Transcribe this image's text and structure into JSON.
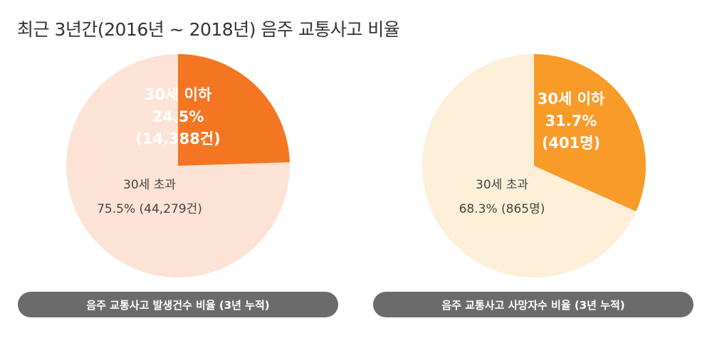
{
  "title": "최근 3년간(2016년 ~ 2018년) 음주 교통사고 비율",
  "chart_data": [
    {
      "type": "pie",
      "caption": "음주 교통사고 발생건수 비율 (3년 누적)",
      "slices": [
        {
          "label": "30세 이하",
          "value": 24.5,
          "pct_text": "24.5%",
          "count_text": "(14,388건)",
          "color": "#f47622"
        },
        {
          "label": "30세 초과",
          "value": 75.5,
          "pct_text": "75.5% (44,279건)",
          "count_text": "",
          "color": "#fde3d5"
        }
      ]
    },
    {
      "type": "pie",
      "caption": "음주 교통사고 사망자수 비율 (3년 누적)",
      "slices": [
        {
          "label": "30세 이하",
          "value": 31.7,
          "pct_text": "31.7%",
          "count_text": "(401명)",
          "color": "#f99b28"
        },
        {
          "label": "30세 초과",
          "value": 68.3,
          "pct_text": "68.3% (865명)",
          "count_text": "",
          "color": "#fdefd8"
        }
      ]
    }
  ]
}
